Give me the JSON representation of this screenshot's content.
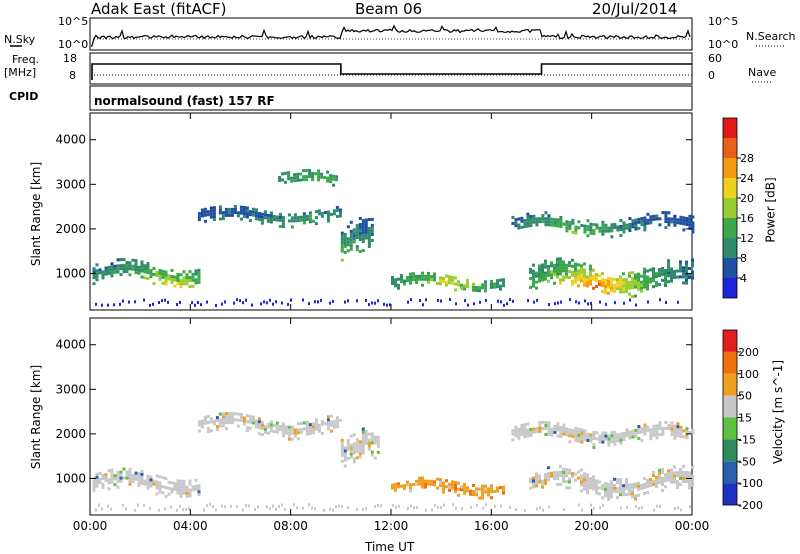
{
  "header": {
    "title": "Adak East (fitACF)",
    "beam": "Beam 06",
    "date": "20/Jul/2014"
  },
  "top_panels": {
    "nsky_label": "N.Sky",
    "nsky_ticks": [
      "10^5",
      "10^0"
    ],
    "nsearch_label": "N.Search",
    "nsearch_ticks": [
      "10^5",
      "10^0"
    ],
    "freq_label": "Freq.",
    "freq_unit": "[MHz]",
    "freq_ticks": [
      "18",
      "8"
    ],
    "nave_label": "Nave",
    "nave_ticks": [
      "60",
      "0"
    ],
    "cpid_label": "CPID",
    "cpid_value": "normalsound (fast) 157 RF"
  },
  "chart_data": [
    {
      "type": "heatmap",
      "name": "power",
      "ylabel": "Slant Range [km]",
      "xlabel": "Time UT",
      "x_ticks": [
        "00:00",
        "04:00",
        "08:00",
        "12:00",
        "16:00",
        "20:00",
        "00:00"
      ],
      "y_ticks": [
        1000,
        2000,
        3000,
        4000
      ],
      "ylim": [
        180,
        4600
      ],
      "xlim_hours": [
        0,
        24
      ],
      "colorbar": {
        "label": "Power [dB]",
        "ticks": [
          4,
          8,
          12,
          16,
          20,
          24,
          28
        ],
        "colors": [
          "#1d24d8",
          "#1f4fa0",
          "#2e8a6a",
          "#3aa84a",
          "#9acd32",
          "#f0d020",
          "#f39c12",
          "#e8601c",
          "#e01a1a"
        ]
      },
      "echo_bands": [
        {
          "t0": 0.1,
          "t1": 4.3,
          "r_center": 1000,
          "r_half": 230,
          "peak_hour": 2.8,
          "peak_range": 560,
          "peak_db": 24
        },
        {
          "t0": 4.3,
          "t1": 10.0,
          "r_center": 2300,
          "r_half": 160,
          "peak_hour": 8.8,
          "peak_range": 1700,
          "peak_db": 18
        },
        {
          "t0": 7.5,
          "t1": 9.8,
          "r_center": 3100,
          "r_half": 150,
          "peak_hour": 9.0,
          "peak_range": 3100,
          "peak_db": 10
        },
        {
          "t0": 10.0,
          "t1": 11.3,
          "r_center": 1700,
          "r_half": 400,
          "peak_hour": 10.2,
          "peak_range": 1300,
          "peak_db": 14
        },
        {
          "t0": 12.0,
          "t1": 16.5,
          "r_center": 800,
          "r_half": 160,
          "peak_hour": 14.3,
          "peak_range": 800,
          "peak_db": 16
        },
        {
          "t0": 16.8,
          "t1": 24.0,
          "r_center": 2100,
          "r_half": 180,
          "peak_hour": 19.0,
          "peak_range": 1750,
          "peak_db": 16
        },
        {
          "t0": 17.5,
          "t1": 24.0,
          "r_center": 900,
          "r_half": 280,
          "peak_hour": 20.0,
          "peak_range": 700,
          "peak_db": 26
        }
      ]
    },
    {
      "type": "heatmap",
      "name": "velocity",
      "ylabel": "Slant Range [km]",
      "xlabel": "Time UT",
      "x_ticks": [
        "00:00",
        "04:00",
        "08:00",
        "12:00",
        "16:00",
        "20:00",
        "00:00"
      ],
      "y_ticks": [
        1000,
        2000,
        3000,
        4000
      ],
      "ylim": [
        180,
        4600
      ],
      "xlim_hours": [
        0,
        24
      ],
      "colorbar": {
        "label": "Velocity [m s^-1]",
        "ticks": [
          "200",
          "100",
          "50",
          "15",
          "-15",
          "-50",
          "-100",
          "-200"
        ],
        "colors": [
          "#2030c0",
          "#2b5fb0",
          "#2d8a5c",
          "#5fc040",
          "#c8c8c8",
          "#f0a020",
          "#f07010",
          "#e02020"
        ]
      },
      "echo_bands": [
        {
          "t0": 0.1,
          "t1": 4.3,
          "r_center": 900,
          "r_half": 230,
          "dominant": "ground"
        },
        {
          "t0": 4.3,
          "t1": 10.0,
          "r_center": 2200,
          "r_half": 200,
          "dominant": "ground"
        },
        {
          "t0": 10.0,
          "t1": 11.5,
          "r_center": 1600,
          "r_half": 350,
          "dominant": "ground"
        },
        {
          "t0": 12.0,
          "t1": 16.5,
          "r_center": 800,
          "r_half": 150,
          "dominant": "negative-orange"
        },
        {
          "t0": 16.8,
          "t1": 24.0,
          "r_center": 2000,
          "r_half": 200,
          "dominant": "ground"
        },
        {
          "t0": 17.5,
          "t1": 24.0,
          "r_center": 900,
          "r_half": 250,
          "dominant": "ground"
        }
      ]
    }
  ]
}
